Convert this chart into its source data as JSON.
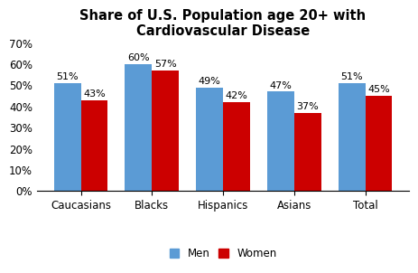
{
  "title": "Share of U.S. Population age 20+ with\nCardiovascular Disease",
  "categories": [
    "Caucasians",
    "Blacks",
    "Hispanics",
    "Asians",
    "Total"
  ],
  "men_values": [
    51,
    60,
    49,
    47,
    51
  ],
  "women_values": [
    43,
    57,
    42,
    37,
    45
  ],
  "men_color": "#5B9BD5",
  "women_color": "#CC0000",
  "ylim": [
    0,
    70
  ],
  "yticks": [
    0,
    10,
    20,
    30,
    40,
    50,
    60,
    70
  ],
  "bar_width": 0.38,
  "title_fontsize": 10.5,
  "tick_fontsize": 8.5,
  "label_fontsize": 8,
  "legend_fontsize": 8.5,
  "background_color": "#FFFFFF"
}
